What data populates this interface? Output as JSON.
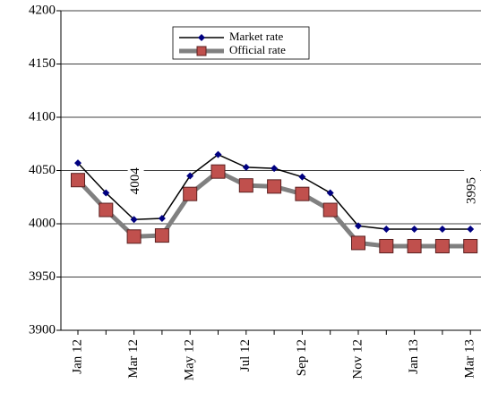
{
  "chart_data": {
    "type": "line",
    "categories": [
      "Jan 12",
      null,
      "Mar 12",
      null,
      "May 12",
      null,
      "Jul 12",
      null,
      "Sep 12",
      null,
      "Nov 12",
      null,
      "Jan 13",
      null,
      "Mar 13"
    ],
    "series": [
      {
        "name": "Market rate",
        "color": "#000080",
        "values": [
          4057,
          4029,
          4004,
          4005,
          4045,
          4065,
          4053,
          4052,
          4044,
          4029,
          3998,
          3995,
          3995,
          3995,
          3995
        ],
        "value_labels": [
          null,
          null,
          "4004",
          null,
          null,
          null,
          null,
          null,
          null,
          null,
          null,
          null,
          null,
          null,
          "3995"
        ]
      },
      {
        "name": "Official rate",
        "color": "#c0504d",
        "values": [
          4041,
          4013,
          3988,
          3989,
          4028,
          4049,
          4036,
          4035,
          4028,
          4013,
          3982,
          3979,
          3979,
          3979,
          3979
        ]
      }
    ],
    "ylim": [
      3900,
      4200
    ],
    "yticks": [
      3900,
      3950,
      4000,
      4050,
      4100,
      4150,
      4200
    ],
    "grid": true
  }
}
